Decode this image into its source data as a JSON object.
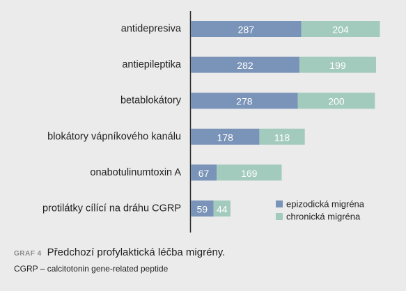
{
  "chart_data": {
    "type": "bar",
    "orientation": "horizontal",
    "stacked": true,
    "categories": [
      "antidepresiva",
      "antiepileptika",
      "betablokátory",
      "blokátory vápníkového kanálu",
      "onabotulinumtoxin A",
      "protilátky cílící na dráhu CGRP"
    ],
    "series": [
      {
        "name": "epizodická migréna",
        "color": "#7a93b8",
        "values": [
          287,
          282,
          278,
          178,
          67,
          59
        ]
      },
      {
        "name": "chronická migréna",
        "color": "#a3cbbd",
        "values": [
          204,
          199,
          200,
          118,
          169,
          44
        ]
      }
    ],
    "xlim": [
      0,
      500
    ],
    "legend_position": "bottom-right",
    "grid": false
  },
  "caption": {
    "tag": "GRAF 4",
    "title": "Předchozí profylaktická léčba migrény."
  },
  "note": "CGRP – calcitotonin gene-related peptide"
}
